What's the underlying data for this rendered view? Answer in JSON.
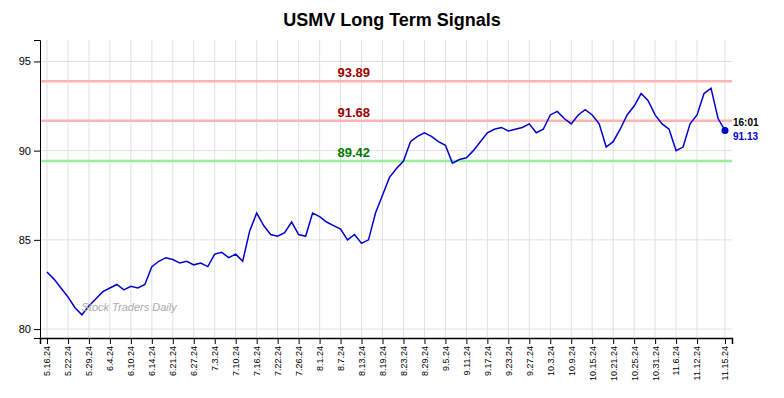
{
  "chart_data": {
    "type": "line",
    "title": "USMV Long Term Signals",
    "color": "#0000cc",
    "grid": true,
    "ylim": [
      79.5,
      96.2
    ],
    "yticks": [
      80,
      85,
      90,
      95
    ],
    "categories": [
      "5.16.24",
      null,
      null,
      "5.22.24",
      null,
      null,
      "5.29.24",
      null,
      null,
      "6.4.24",
      null,
      null,
      "6.10.24",
      null,
      null,
      "6.14.24",
      null,
      null,
      "6.21.24",
      null,
      null,
      "6.27.24",
      null,
      null,
      "7.3.24",
      null,
      null,
      "7.10.24",
      null,
      null,
      "7.16.24",
      null,
      null,
      "7.22.24",
      null,
      null,
      "7.26.24",
      null,
      null,
      "8.1.24",
      null,
      null,
      "8.7.24",
      null,
      null,
      "8.13.24",
      null,
      null,
      "8.19.24",
      null,
      null,
      "8.23.24",
      null,
      null,
      "8.29.24",
      null,
      null,
      "9.5.24",
      null,
      null,
      "9.11.24",
      null,
      null,
      "9.17.24",
      null,
      null,
      "9.23.24",
      null,
      null,
      "9.27.24",
      null,
      null,
      "10.3.24",
      null,
      null,
      "10.9.24",
      null,
      null,
      "10.15.24",
      null,
      null,
      "10.21.24",
      null,
      null,
      "10.25.24",
      null,
      null,
      "10.31.24",
      null,
      null,
      "11.6.24",
      null,
      null,
      "11.12.24",
      null,
      null,
      null,
      "11.15.24"
    ],
    "values": [
      83.2,
      82.8,
      82.3,
      81.8,
      81.2,
      80.8,
      81.3,
      81.7,
      82.1,
      82.3,
      82.5,
      82.2,
      82.4,
      82.3,
      82.5,
      83.5,
      83.8,
      84.0,
      83.9,
      83.7,
      83.8,
      83.6,
      83.7,
      83.5,
      84.2,
      84.3,
      84.0,
      84.2,
      83.8,
      85.5,
      86.5,
      85.8,
      85.3,
      85.2,
      85.4,
      86.0,
      85.3,
      85.2,
      86.5,
      86.3,
      86.0,
      85.8,
      85.6,
      85.0,
      85.3,
      84.8,
      85.0,
      86.5,
      87.5,
      88.5,
      89.0,
      89.42,
      90.5,
      90.8,
      91.0,
      90.8,
      90.5,
      90.3,
      89.3,
      89.5,
      89.6,
      90.0,
      90.5,
      91.0,
      91.2,
      91.3,
      91.1,
      91.2,
      91.3,
      91.5,
      91.0,
      91.2,
      92.0,
      92.2,
      91.8,
      91.5,
      92.0,
      92.3,
      92.0,
      91.5,
      90.2,
      90.5,
      91.2,
      92.0,
      92.5,
      93.2,
      92.8,
      92.0,
      91.5,
      91.2,
      90.0,
      90.2,
      91.5,
      92.0,
      93.2,
      93.5,
      91.8,
      91.13
    ],
    "annotations": [
      {
        "type": "hline",
        "value": 93.89,
        "color": "#ffb3b3",
        "label_color": "#990000"
      },
      {
        "type": "hline",
        "value": 91.68,
        "color": "#ffb3b3",
        "label_color": "#990000"
      },
      {
        "type": "hline",
        "value": 89.42,
        "color": "#99ee99",
        "label_color": "#007700"
      },
      {
        "type": "point",
        "text": "16:01",
        "value": 91.13,
        "color": "#0000cc"
      },
      {
        "type": "watermark",
        "text": "Stock Traders Daily",
        "color": "#aaaaaa"
      }
    ]
  }
}
